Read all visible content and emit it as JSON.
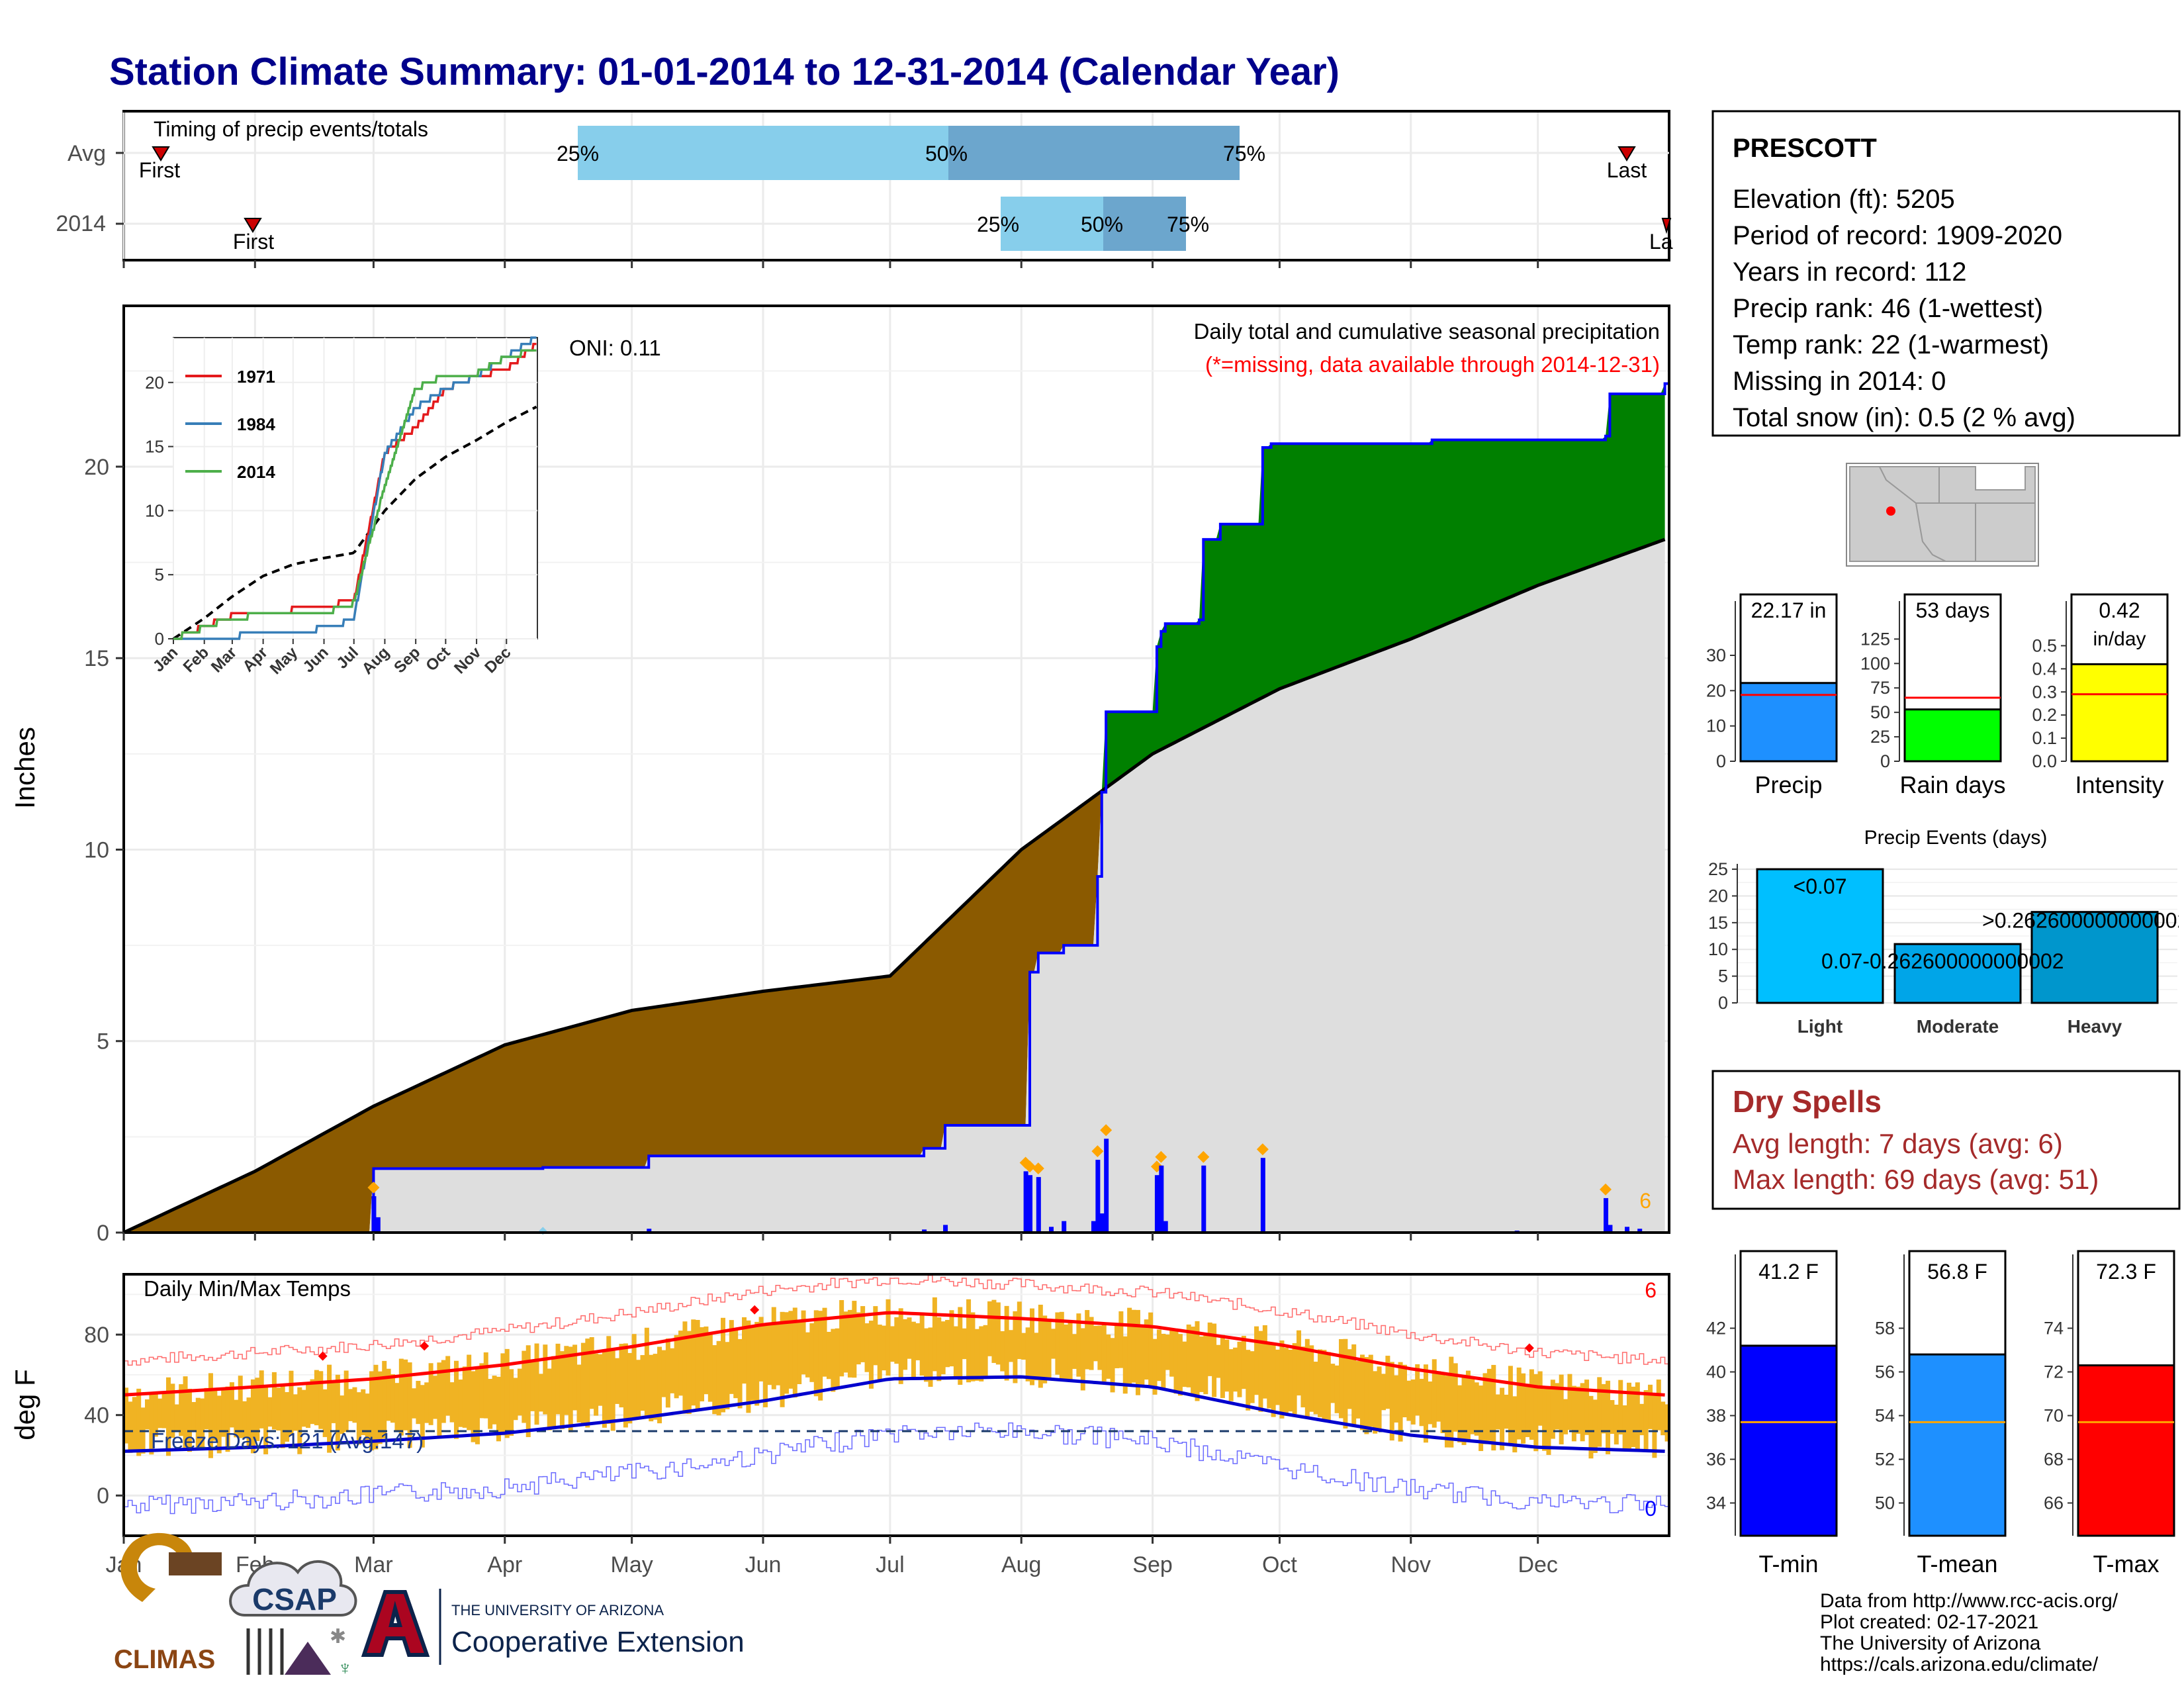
{
  "title": "Station Climate Summary: 01-01-2014 to 12-31-2014 (Calendar Year)",
  "timing_panel": {
    "label": "Timing of precip events/totals",
    "rows": [
      {
        "name": "Avg",
        "first_label": "First",
        "last_label": "Last",
        "q25": "25%",
        "q50": "50%",
        "q75": "75%"
      },
      {
        "name": "2014",
        "first_label": "First",
        "last_label": "La",
        "q25": "25%",
        "q50": "50%",
        "q75": "75%"
      }
    ]
  },
  "precip_panel": {
    "title": "Daily total and cumulative seasonal precipitation",
    "subtitle": "(*=missing, data available through 2014-12-31)",
    "oni": "ONI: 0.11",
    "ylabel": "Inches",
    "yticks": [
      "0",
      "5",
      "10",
      "15",
      "20"
    ],
    "extreme_count": "6"
  },
  "inset": {
    "legend": [
      "1971",
      "1984",
      "2014"
    ],
    "yticks": [
      "0",
      "5",
      "10",
      "15",
      "20"
    ],
    "xticks": [
      "Jan",
      "Feb",
      "Mar",
      "Apr",
      "May",
      "Jun",
      "Jul",
      "Aug",
      "Sep",
      "Oct",
      "Nov",
      "Dec"
    ]
  },
  "temp_panel": {
    "title": "Daily Min/Max Temps",
    "ylabel": "deg F",
    "yticks": [
      "0",
      "40",
      "80"
    ],
    "freeze": "Freeze Days: 121 (Avg.147)",
    "max_count": "6",
    "min_count": "0"
  },
  "months": [
    "Jan",
    "Feb",
    "Mar",
    "Apr",
    "May",
    "Jun",
    "Jul",
    "Aug",
    "Sep",
    "Oct",
    "Nov",
    "Dec"
  ],
  "station": {
    "name": "PRESCOTT",
    "lines": [
      "Elevation (ft): 5205",
      "Period of record: 1909-2020",
      "Years in record: 112",
      "Precip rank: 46 (1-wettest)",
      "Temp rank: 22 (1-warmest)",
      "Missing in 2014: 0",
      "Total snow (in): 0.5 (2 % avg)"
    ]
  },
  "mini_bars": [
    {
      "label": "Precip",
      "value_text": "22.17 in",
      "value": 22.17,
      "avg": 18.8,
      "yticks": [
        "0",
        "10",
        "20",
        "30"
      ],
      "max": 36,
      "color": "#1e90ff"
    },
    {
      "label": "Rain days",
      "value_text": "53 days",
      "value": 53,
      "avg": 65,
      "yticks": [
        "0",
        "25",
        "50",
        "75",
        "100",
        "125"
      ],
      "max": 130,
      "color": "#00ff00"
    },
    {
      "label": "Intensity",
      "value_text": "0.42",
      "value_text2": "in/day",
      "value": 0.42,
      "avg": 0.29,
      "yticks": [
        "0.0",
        "0.1",
        "0.2",
        "0.3",
        "0.4",
        "0.5"
      ],
      "max": 0.55,
      "color": "#ffff00"
    }
  ],
  "precip_events": {
    "title": "Precip Events (days)",
    "yticks": [
      "0",
      "5",
      "10",
      "15",
      "20",
      "25"
    ],
    "bars": [
      {
        "category": "Light",
        "label": "<0.07",
        "value": 25,
        "color": "#00bfff"
      },
      {
        "category": "Moderate",
        "label": "0.07-0.262600000000002",
        "value": 11,
        "color": "#00a5e8"
      },
      {
        "category": "Heavy",
        "label": ">0.262600000000002",
        "value": 17,
        "color": "#0096cc"
      }
    ]
  },
  "dry_spells": {
    "title": "Dry Spells",
    "avg": "Avg length: 7 days (avg: 6)",
    "max": "Max length: 69 days (avg: 51)"
  },
  "temp_bars": [
    {
      "label": "T-min",
      "value_text": "41.2 F",
      "value": 41.2,
      "avg": 37.7,
      "yticks": [
        "34",
        "36",
        "38",
        "40",
        "42"
      ],
      "min": 32.5,
      "max": 43.5,
      "color": "#0000ff"
    },
    {
      "label": "T-mean",
      "value_text": "56.8 F",
      "value": 56.8,
      "avg": 53.7,
      "yticks": [
        "50",
        "52",
        "54",
        "56",
        "58"
      ],
      "min": 48.5,
      "max": 59.5,
      "color": "#1e90ff"
    },
    {
      "label": "T-max",
      "value_text": "72.3 F",
      "value": 72.3,
      "avg": 69.7,
      "yticks": [
        "66",
        "68",
        "70",
        "72",
        "74"
      ],
      "min": 64.5,
      "max": 75.5,
      "color": "#ff0000"
    }
  ],
  "logos": {
    "climas": "CLIMAS",
    "csap": "CSAP",
    "ua_small": "THE UNIVERSITY OF ARIZONA",
    "ua_big": "Cooperative Extension"
  },
  "footer": [
    "Data from http://www.rcc-acis.org/",
    "Plot created: 02-17-2021",
    "The University of Arizona",
    "https://cals.arizona.edu/climate/"
  ],
  "chart_data": [
    {
      "type": "area",
      "title": "Daily total and cumulative seasonal precipitation",
      "ylabel": "Inches",
      "ylim": [
        0,
        24.2
      ],
      "avg_cumulative": {
        "x": [
          "Jan 1",
          "Feb 1",
          "Mar 1",
          "Apr 1",
          "May 1",
          "Jun 1",
          "Jul 1",
          "Aug 1",
          "Sep 1",
          "Oct 1",
          "Nov 1",
          "Dec 1",
          "Dec 31"
        ],
        "values": [
          0,
          1.6,
          3.3,
          4.9,
          5.8,
          6.3,
          6.7,
          10.0,
          12.5,
          14.2,
          15.5,
          16.9,
          18.1
        ]
      },
      "cumulative_2014": {
        "day": [
          1,
          59,
          60,
          100,
          125,
          173,
          190,
          195,
          214,
          215,
          217,
          223,
          231,
          232,
          233,
          245,
          246,
          247,
          255,
          256,
          260,
          270,
          272,
          274,
          295,
          310,
          351,
          352,
          365
        ],
        "values": [
          0,
          0,
          1.67,
          1.7,
          2.0,
          2.0,
          2.2,
          2.8,
          2.8,
          6.8,
          7.3,
          7.5,
          9.3,
          11.5,
          13.6,
          15.3,
          15.7,
          15.9,
          16.0,
          18.1,
          18.5,
          20.5,
          20.6,
          20.6,
          20.6,
          20.7,
          20.8,
          21.9,
          22.17
        ]
      },
      "daily_2014": {
        "day": [
          60,
          61,
          100,
          125,
          190,
          195,
          214,
          215,
          217,
          220,
          223,
          230,
          231,
          232,
          233,
          245,
          246,
          247,
          256,
          270,
          330,
          351,
          352,
          356,
          359
        ],
        "values": [
          0.95,
          0.4,
          0.05,
          0.1,
          0.08,
          0.2,
          1.6,
          1.5,
          1.45,
          0.15,
          0.3,
          0.3,
          1.9,
          0.5,
          2.45,
          1.5,
          1.75,
          0.3,
          1.75,
          1.95,
          0.05,
          0.9,
          0.2,
          0.15,
          0.1
        ]
      }
    },
    {
      "type": "line",
      "title": "",
      "series": [
        {
          "name": "1971",
          "x": [
            "Jan",
            "Mar",
            "Jun",
            "Jul",
            "Aug",
            "Sep",
            "Oct",
            "Nov",
            "Dec",
            "Dec 31"
          ],
          "values": [
            0,
            1.8,
            2.5,
            3.0,
            14.5,
            16.5,
            19.5,
            20.5,
            21.0,
            23.0
          ]
        },
        {
          "name": "1984",
          "x": [
            "Jan",
            "Mar",
            "Jun",
            "Jul",
            "Aug",
            "Sep",
            "Oct",
            "Nov",
            "Dec",
            "Dec 31"
          ],
          "values": [
            0,
            0.2,
            0.8,
            1.5,
            14.5,
            18.0,
            19.5,
            20.5,
            22.0,
            23.5
          ]
        },
        {
          "name": "2014",
          "x": [
            "Jan",
            "Mar",
            "Jun",
            "Jul",
            "Aug",
            "Sep",
            "Oct",
            "Nov",
            "Dec",
            "Dec 31"
          ],
          "values": [
            0,
            1.7,
            2.0,
            2.8,
            12.0,
            19.5,
            20.6,
            20.7,
            22.0,
            22.5
          ]
        }
      ],
      "ylim": [
        0,
        23.5
      ]
    },
    {
      "type": "bar",
      "title": "Daily Min/Max Temps",
      "ylabel": "deg F",
      "ylim": [
        -20,
        110
      ],
      "avg_max": {
        "x": [
          "Jan",
          "Feb",
          "Mar",
          "Apr",
          "May",
          "Jun",
          "Jul",
          "Aug",
          "Sep",
          "Oct",
          "Nov",
          "Dec",
          "Dec 31"
        ],
        "values": [
          50,
          54,
          58,
          65,
          74,
          85,
          91,
          88,
          84,
          75,
          63,
          54,
          50
        ]
      },
      "avg_min": {
        "x": [
          "Jan",
          "Feb",
          "Mar",
          "Apr",
          "May",
          "Jun",
          "Jul",
          "Aug",
          "Sep",
          "Oct",
          "Nov",
          "Dec",
          "Dec 31"
        ],
        "values": [
          22,
          24,
          27,
          31,
          38,
          47,
          58,
          59,
          54,
          41,
          30,
          24,
          22
        ]
      },
      "freeze_threshold": 32
    }
  ]
}
